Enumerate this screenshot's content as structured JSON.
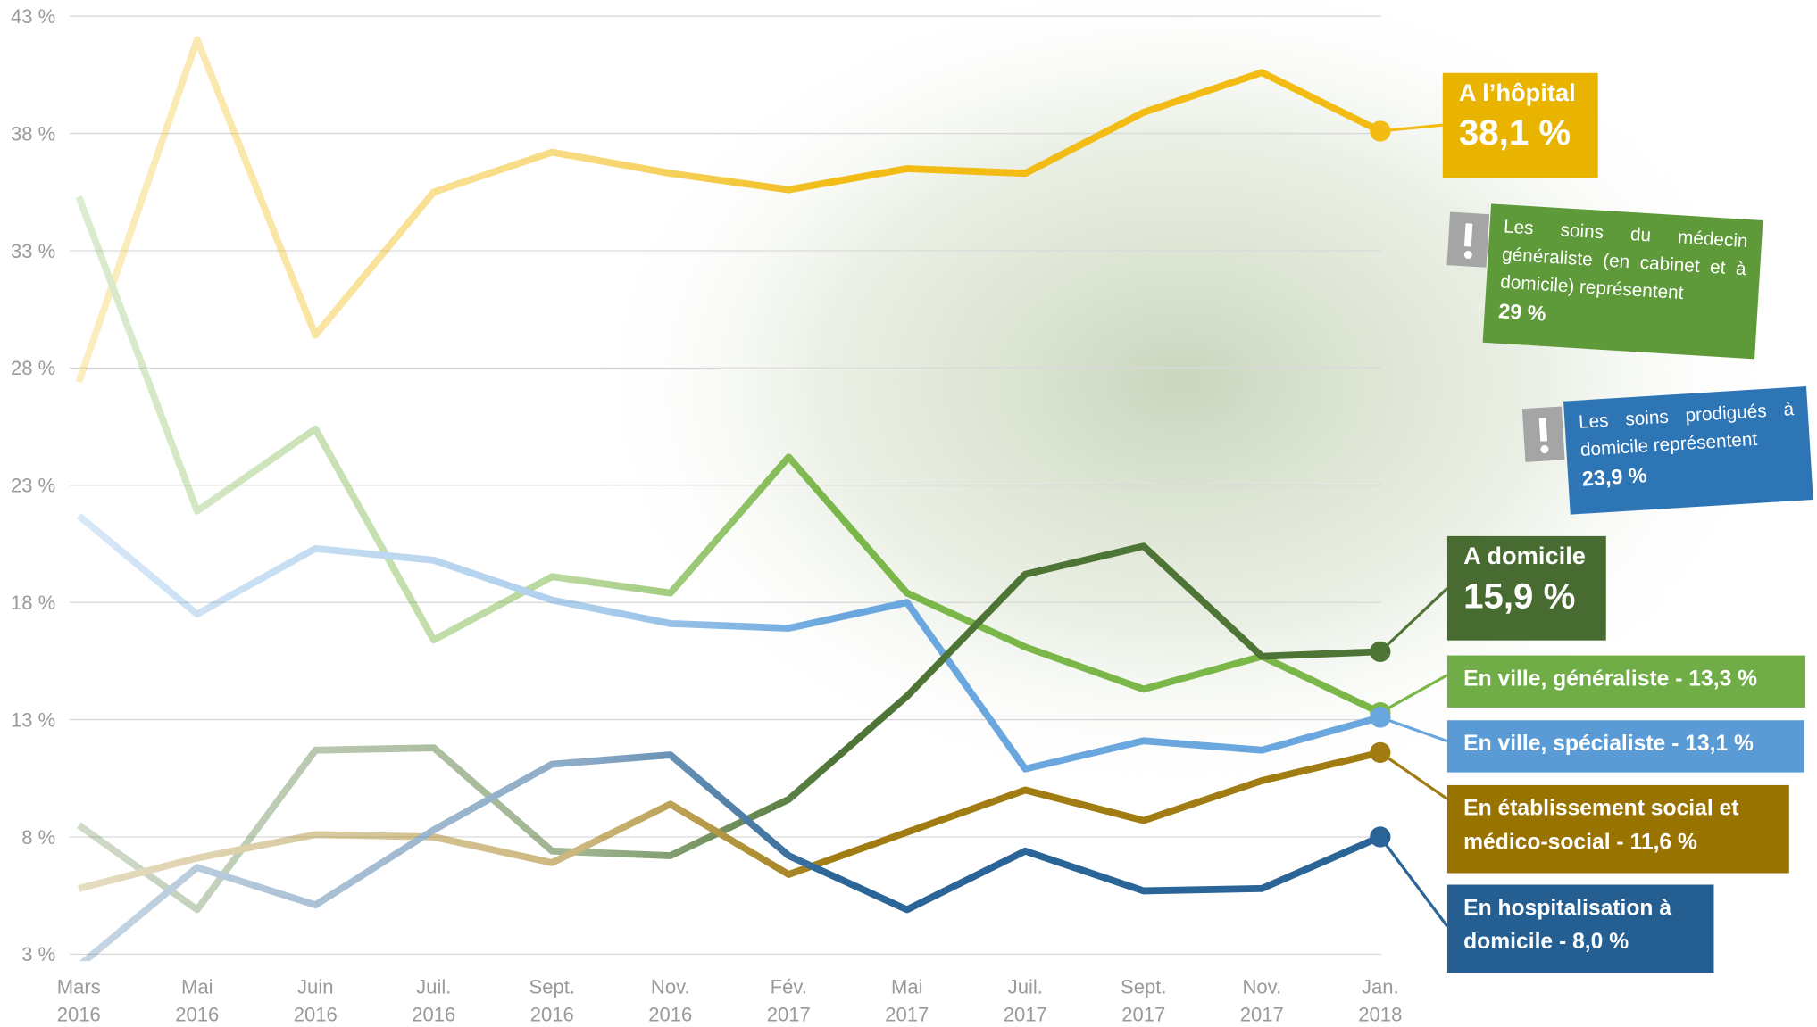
{
  "chart_data": {
    "type": "line",
    "categories": [
      "Mars 2016",
      "Mai 2016",
      "Juin 2016",
      "Juil. 2016",
      "Sept. 2016",
      "Nov. 2016",
      "Fév. 2017",
      "Mai 2017",
      "Juil. 2017",
      "Sept. 2017",
      "Nov. 2017",
      "Jan. 2018"
    ],
    "ylim": [
      3,
      43
    ],
    "yticks": [
      {
        "value": 3,
        "label": "3 %"
      },
      {
        "value": 8,
        "label": "8 %"
      },
      {
        "value": 13,
        "label": "13 %"
      },
      {
        "value": 18,
        "label": "18 %"
      },
      {
        "value": 23,
        "label": "23 %"
      },
      {
        "value": 28,
        "label": "28 %"
      },
      {
        "value": 33,
        "label": "33 %"
      },
      {
        "value": 38,
        "label": "38 %"
      },
      {
        "value": 43,
        "label": "43 %"
      }
    ],
    "grid": true,
    "separator": "-",
    "series": [
      {
        "name": "A l’hôpital",
        "color": "#f2bc14",
        "values": [
          27.4,
          42.0,
          29.4,
          35.5,
          37.2,
          36.3,
          35.6,
          36.5,
          36.3,
          38.9,
          40.6,
          38.1
        ],
        "value_labels": [
          null,
          null,
          null,
          null,
          null,
          null,
          null,
          null,
          null,
          null,
          null,
          "38,1 %"
        ]
      },
      {
        "name": "En ville, généraliste",
        "color": "#7ab648",
        "values": [
          35.3,
          21.9,
          25.4,
          16.4,
          19.1,
          18.4,
          24.2,
          18.4,
          16.1,
          14.3,
          15.7,
          13.3
        ],
        "value_labels": [
          null,
          null,
          null,
          null,
          null,
          null,
          null,
          null,
          null,
          null,
          null,
          "13,3 %"
        ]
      },
      {
        "name": "En ville, spécialiste",
        "color": "#6aa7de",
        "values": [
          21.7,
          17.5,
          20.3,
          19.8,
          18.1,
          17.1,
          16.9,
          18.0,
          10.9,
          12.1,
          11.7,
          13.1
        ],
        "value_labels": [
          null,
          null,
          null,
          null,
          null,
          null,
          null,
          null,
          null,
          null,
          null,
          "13,1 %"
        ]
      },
      {
        "name": "A domicile",
        "color": "#4e7535",
        "values": [
          8.5,
          4.9,
          11.7,
          11.8,
          7.4,
          7.2,
          9.6,
          14.0,
          19.2,
          20.4,
          15.7,
          15.9
        ],
        "value_labels": [
          null,
          null,
          null,
          null,
          null,
          null,
          null,
          null,
          null,
          null,
          null,
          "15,9 %"
        ]
      },
      {
        "name": "En établissement social et médico-social",
        "color": "#a07c12",
        "values": [
          5.8,
          7.1,
          8.1,
          8.0,
          6.9,
          9.4,
          6.4,
          8.2,
          10.0,
          8.7,
          10.4,
          11.6
        ],
        "value_labels": [
          null,
          null,
          null,
          null,
          null,
          null,
          null,
          null,
          null,
          null,
          null,
          "11,6 %"
        ]
      },
      {
        "name": "En hospitalisation à domicile",
        "color": "#2b6496",
        "values": [
          2.5,
          6.7,
          5.1,
          8.3,
          11.1,
          11.5,
          7.2,
          4.9,
          7.4,
          5.7,
          5.8,
          8.0
        ],
        "value_labels": [
          null,
          null,
          null,
          null,
          null,
          null,
          null,
          null,
          null,
          null,
          null,
          "8,0 %"
        ]
      }
    ],
    "annotations": [
      {
        "text": "Les soins du médecin généraliste (en cabinet et à domicile) représentent",
        "value": "29 %"
      },
      {
        "text": "Les soins prodigués à domicile représentent",
        "value": "23,9 %"
      }
    ]
  }
}
